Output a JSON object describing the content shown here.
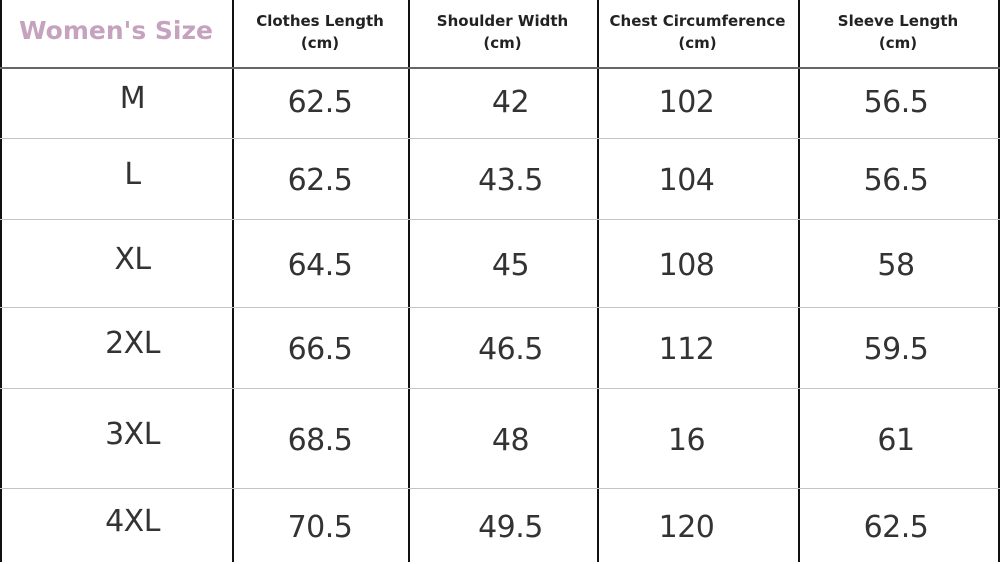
{
  "table": {
    "title": "Women's Size",
    "headers": [
      {
        "name": "Clothes Length",
        "unit": "(cm)"
      },
      {
        "name": "Shoulder Width",
        "unit": "(cm)"
      },
      {
        "name": "Chest Circumference",
        "unit": "(cm)"
      },
      {
        "name": "Sleeve Length",
        "unit": "(cm)"
      }
    ],
    "rows": [
      {
        "size": "M",
        "values": [
          "62.5",
          "42",
          "102",
          "56.5"
        ]
      },
      {
        "size": "L",
        "values": [
          "62.5",
          "43.5",
          "104",
          "56.5"
        ]
      },
      {
        "size": "XL",
        "values": [
          "64.5",
          "45",
          "108",
          "58"
        ]
      },
      {
        "size": "2XL",
        "values": [
          "66.5",
          "46.5",
          "112",
          "59.5"
        ]
      },
      {
        "size": "3XL",
        "values": [
          "68.5",
          "48",
          "16",
          "61"
        ]
      },
      {
        "size": "4XL",
        "values": [
          "70.5",
          "49.5",
          "120",
          "62.5"
        ]
      }
    ],
    "colors": {
      "title": "#c5a3bf",
      "text": "#333333",
      "border": "#111111"
    }
  }
}
